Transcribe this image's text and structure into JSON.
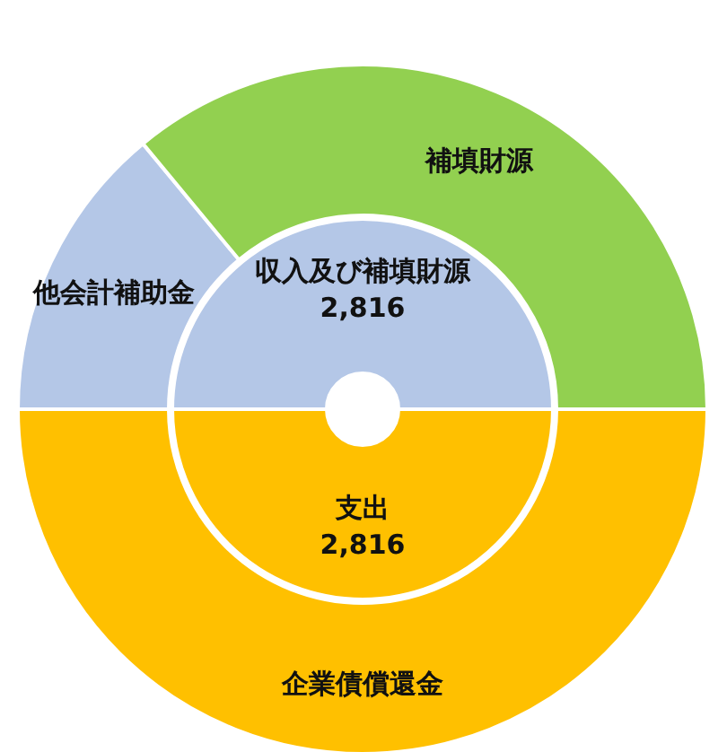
{
  "chart_data": [
    {
      "type": "donut",
      "categories": [
        "収入及び補填財源",
        "支出"
      ],
      "values": [
        2816,
        2816
      ],
      "value_labels": [
        "2,816",
        "2,816"
      ],
      "colors": [
        "#b4c7e7",
        "#ffc000"
      ]
    },
    {
      "type": "donut",
      "categories": [
        "他会計補助金",
        "補填財源",
        "企業債償還金"
      ],
      "values": [
        14,
        36,
        50
      ],
      "colors": [
        "#b4c7e7",
        "#92d050",
        "#ffc000"
      ]
    }
  ]
}
